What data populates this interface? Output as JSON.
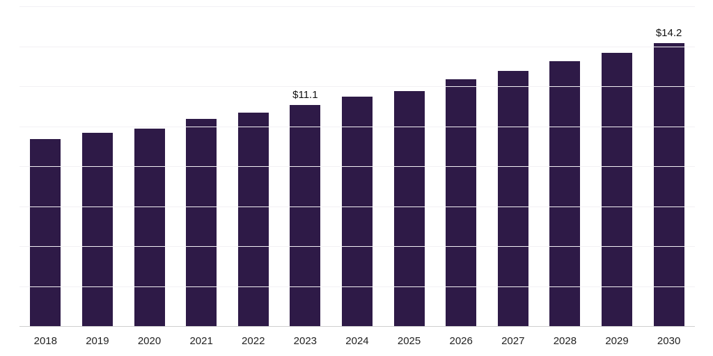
{
  "chart_data": {
    "type": "bar",
    "title": "",
    "xlabel": "",
    "ylabel": "",
    "categories": [
      "2018",
      "2019",
      "2020",
      "2021",
      "2022",
      "2023",
      "2024",
      "2025",
      "2026",
      "2027",
      "2028",
      "2029",
      "2030"
    ],
    "values": [
      9.4,
      9.7,
      9.9,
      10.4,
      10.7,
      11.1,
      11.5,
      11.8,
      12.4,
      12.8,
      13.3,
      13.7,
      14.2
    ],
    "data_labels": [
      {
        "category": "2023",
        "text": "$11.1"
      },
      {
        "category": "2030",
        "text": "$14.2"
      }
    ],
    "bar_color": "#2e1a47",
    "ylim": [
      0,
      16
    ],
    "grid": true,
    "grid_step": 2,
    "legend": "none"
  }
}
